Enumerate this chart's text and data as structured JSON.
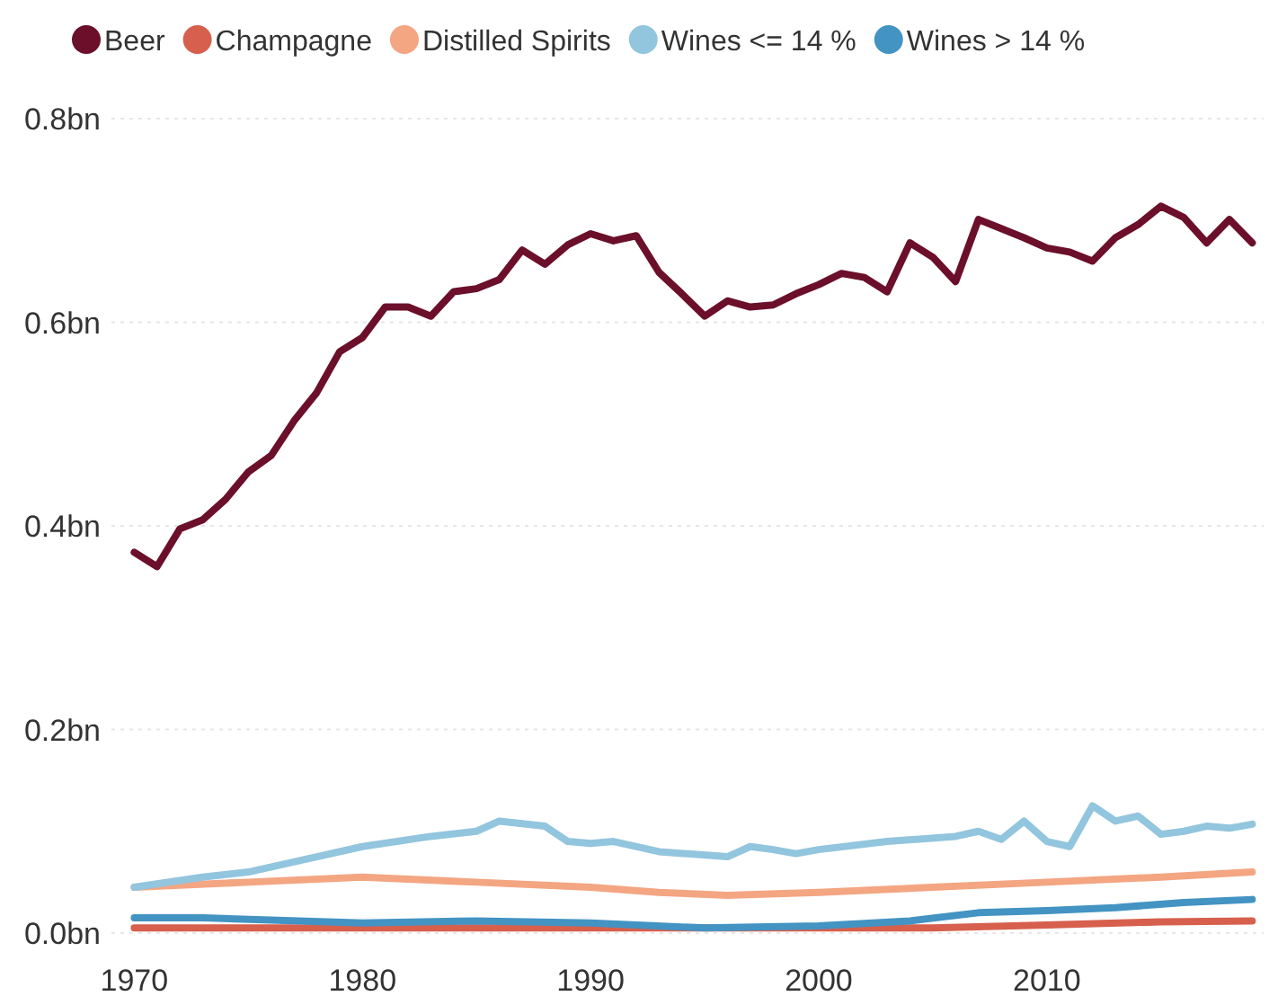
{
  "chart_data": {
    "type": "line",
    "xlim": [
      1969,
      2019.5
    ],
    "xticks": [
      1970,
      1980,
      1990,
      2000,
      2010
    ],
    "ylim": [
      0,
      0.8
    ],
    "yticks": [
      {
        "value": 0,
        "label": "0.0bn"
      },
      {
        "value": 0.2,
        "label": "0.2bn"
      },
      {
        "value": 0.4,
        "label": "0.4bn"
      },
      {
        "value": 0.6,
        "label": "0.6bn"
      },
      {
        "value": 0.8,
        "label": "0.8bn"
      }
    ],
    "grid": "y",
    "legend": "top",
    "marker": "none",
    "line_style": "solid",
    "series": [
      {
        "name": "Beer",
        "color": "#6b0f2a",
        "x": [
          1970,
          1971,
          1972,
          1973,
          1974,
          1975,
          1976,
          1977,
          1978,
          1979,
          1980,
          1981,
          1982,
          1983,
          1984,
          1985,
          1986,
          1987,
          1988,
          1989,
          1990,
          1991,
          1992,
          1993,
          1994,
          1995,
          1996,
          1997,
          1998,
          1999,
          2000,
          2001,
          2002,
          2003,
          2004,
          2005,
          2006,
          2007,
          2008,
          2009,
          2010,
          2011,
          2012,
          2013,
          2014,
          2015,
          2016,
          2017,
          2018,
          2019
        ],
        "values": [
          0.374,
          0.36,
          0.397,
          0.406,
          0.426,
          0.453,
          0.469,
          0.503,
          0.531,
          0.571,
          0.585,
          0.615,
          0.615,
          0.606,
          0.63,
          0.633,
          0.642,
          0.671,
          0.657,
          0.676,
          0.687,
          0.68,
          0.685,
          0.649,
          0.628,
          0.606,
          0.621,
          0.615,
          0.617,
          0.628,
          0.637,
          0.648,
          0.644,
          0.63,
          0.678,
          0.664,
          0.64,
          0.701,
          0.692,
          0.683,
          0.673,
          0.669,
          0.66,
          0.683,
          0.696,
          0.714,
          0.703,
          0.678,
          0.701,
          0.678
        ]
      },
      {
        "name": "Champagne",
        "color": "#d6604d",
        "x": [
          1970,
          1980,
          1990,
          2000,
          2005,
          2010,
          2015,
          2019
        ],
        "values": [
          0.005,
          0.005,
          0.005,
          0.005,
          0.005,
          0.008,
          0.011,
          0.012
        ]
      },
      {
        "name": "Distilled Spirits",
        "color": "#f4a582",
        "x": [
          1970,
          1975,
          1980,
          1985,
          1990,
          1993,
          1996,
          2000,
          2005,
          2010,
          2015,
          2019
        ],
        "values": [
          0.045,
          0.05,
          0.055,
          0.05,
          0.045,
          0.04,
          0.037,
          0.04,
          0.045,
          0.05,
          0.055,
          0.06
        ]
      },
      {
        "name": "Wines <= 14 %",
        "color": "#92c5de",
        "x": [
          1970,
          1973,
          1975,
          1978,
          1980,
          1983,
          1985,
          1986,
          1988,
          1989,
          1990,
          1991,
          1993,
          1996,
          1997,
          1998,
          1999,
          2000,
          2003,
          2006,
          2007,
          2008,
          2009,
          2010,
          2011,
          2012,
          2013,
          2014,
          2015,
          2016,
          2017,
          2018,
          2019
        ],
        "values": [
          0.045,
          0.055,
          0.06,
          0.075,
          0.085,
          0.095,
          0.1,
          0.11,
          0.105,
          0.09,
          0.088,
          0.09,
          0.08,
          0.075,
          0.085,
          0.082,
          0.078,
          0.082,
          0.09,
          0.095,
          0.1,
          0.092,
          0.11,
          0.09,
          0.085,
          0.125,
          0.11,
          0.115,
          0.097,
          0.1,
          0.105,
          0.103,
          0.107
        ]
      },
      {
        "name": "Wines > 14 %",
        "color": "#4393c3",
        "x": [
          1970,
          1973,
          1980,
          1985,
          1990,
          1995,
          2000,
          2004,
          2007,
          2010,
          2013,
          2016,
          2019
        ],
        "values": [
          0.015,
          0.015,
          0.01,
          0.012,
          0.01,
          0.005,
          0.007,
          0.012,
          0.02,
          0.022,
          0.025,
          0.03,
          0.033
        ]
      }
    ]
  }
}
